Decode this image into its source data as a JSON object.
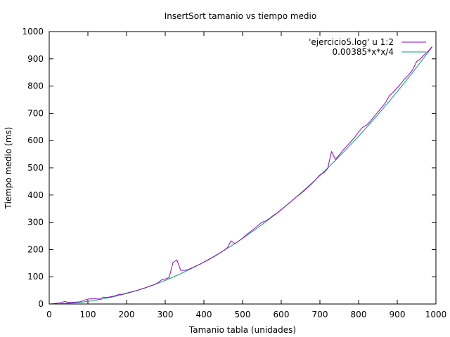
{
  "chart_data": {
    "type": "line",
    "title": "InsertSort tamanio vs tiempo medio",
    "xlabel": "Tamanio tabla (unidades)",
    "ylabel": "Tiempo medio (ms)",
    "xlim": [
      0,
      1000
    ],
    "ylim": [
      0,
      1000
    ],
    "xticks": [
      0,
      100,
      200,
      300,
      400,
      500,
      600,
      700,
      800,
      900,
      1000
    ],
    "yticks": [
      0,
      100,
      200,
      300,
      400,
      500,
      600,
      700,
      800,
      900,
      1000
    ],
    "grid": false,
    "legend_position": "top-right",
    "series": [
      {
        "name": "'ejercicio5.log' u 1:2",
        "color": "#9400d3",
        "x": [
          0,
          10,
          20,
          30,
          40,
          50,
          60,
          70,
          80,
          90,
          100,
          110,
          120,
          130,
          140,
          150,
          160,
          170,
          180,
          190,
          200,
          210,
          220,
          230,
          240,
          250,
          260,
          270,
          280,
          290,
          300,
          310,
          320,
          330,
          340,
          350,
          360,
          370,
          380,
          390,
          400,
          410,
          420,
          430,
          440,
          450,
          460,
          470,
          480,
          490,
          500,
          510,
          520,
          530,
          540,
          550,
          560,
          570,
          580,
          590,
          600,
          610,
          620,
          630,
          640,
          650,
          660,
          670,
          680,
          690,
          700,
          710,
          720,
          730,
          740,
          750,
          760,
          770,
          780,
          790,
          800,
          810,
          820,
          830,
          840,
          850,
          860,
          870,
          880,
          890,
          900,
          910,
          920,
          930,
          940,
          950,
          960,
          970,
          980,
          990
        ],
        "y": [
          0,
          1,
          3,
          5,
          9,
          6,
          6,
          7,
          8,
          14,
          18,
          19,
          19,
          18,
          25,
          24,
          27,
          30,
          35,
          36,
          40,
          44,
          47,
          51,
          56,
          60,
          66,
          70,
          77,
          88,
          92,
          97,
          152,
          162,
          124,
          123,
          127,
          133,
          140,
          146,
          154,
          161,
          169,
          177,
          186,
          195,
          205,
          232,
          222,
          231,
          242,
          254,
          265,
          276,
          288,
          300,
          305,
          314,
          326,
          334,
          346,
          358,
          370,
          382,
          394,
          405,
          417,
          430,
          443,
          458,
          474,
          482,
          497,
          560,
          531,
          547,
          565,
          580,
          596,
          612,
          632,
          648,
          656,
          670,
          688,
          705,
          722,
          740,
          765,
          778,
          794,
          810,
          828,
          842,
          860,
          890,
          900,
          915,
          928,
          945
        ]
      },
      {
        "name": "0.00385*x*x/4",
        "color": "#009e73",
        "function": "0.00385*x*x/4",
        "x": [
          0,
          20,
          40,
          60,
          80,
          100,
          120,
          140,
          160,
          180,
          200,
          220,
          240,
          260,
          280,
          300,
          320,
          340,
          360,
          380,
          400,
          420,
          440,
          460,
          480,
          500,
          520,
          540,
          560,
          580,
          600,
          620,
          640,
          660,
          680,
          700,
          720,
          740,
          760,
          780,
          800,
          820,
          840,
          860,
          880,
          900,
          920,
          940,
          960,
          980,
          990
        ],
        "y": [
          0,
          0.385,
          1.54,
          3.465,
          6.16,
          9.625,
          13.86,
          18.865,
          24.64,
          31.185,
          38.5,
          46.585,
          55.44,
          65.065,
          75.46,
          86.625,
          98.56,
          111.265,
          124.74,
          138.985,
          154,
          169.785,
          186.34,
          203.665,
          221.76,
          240.625,
          260.26,
          280.665,
          301.84,
          323.785,
          346.5,
          369.985,
          394.24,
          419.265,
          445.06,
          471.625,
          498.96,
          527.065,
          555.94,
          585.585,
          616,
          647.185,
          679.14,
          711.865,
          745.36,
          779.625,
          814.66,
          850.465,
          887.04,
          924.385,
          943.296
        ]
      }
    ]
  }
}
